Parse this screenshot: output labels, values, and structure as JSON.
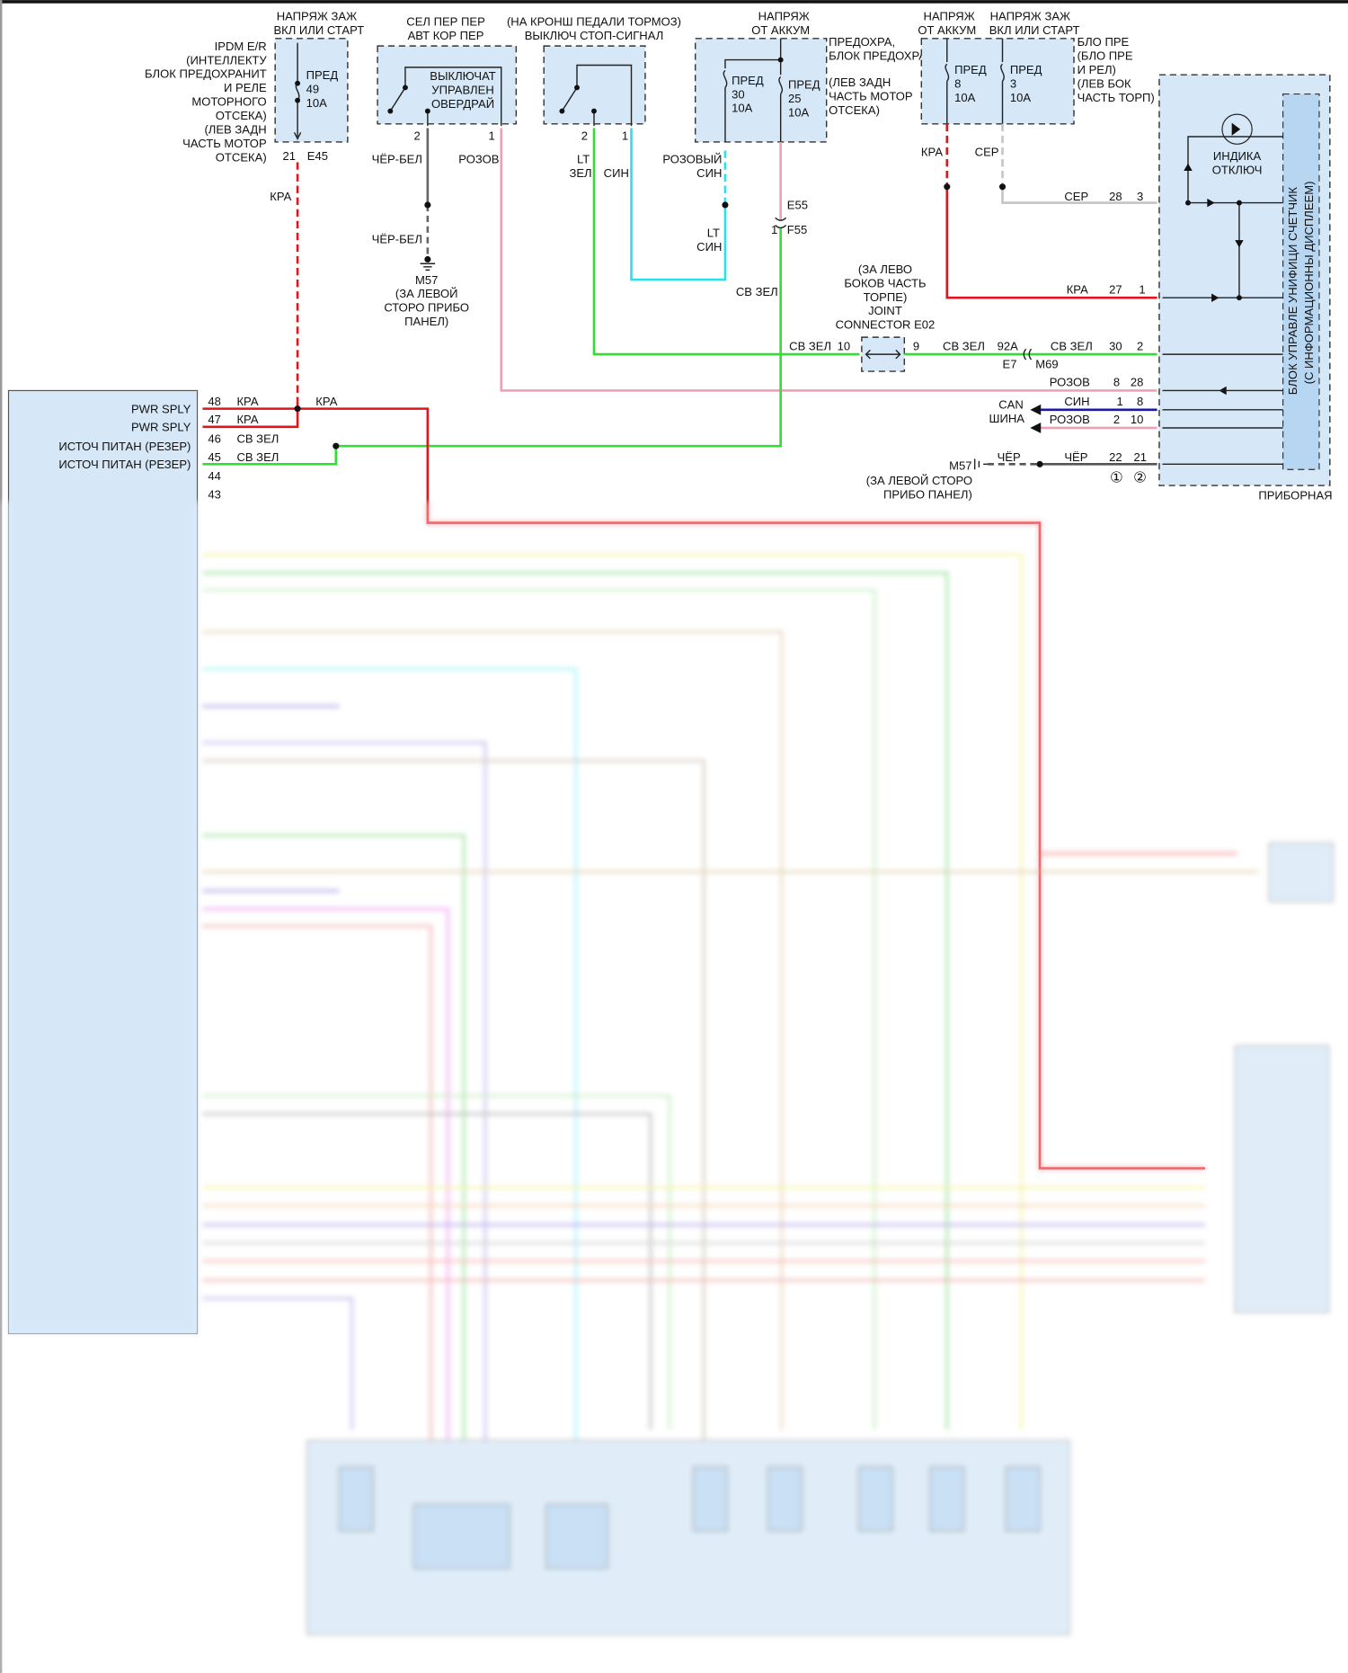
{
  "colors": {
    "red": "#e0141c",
    "pink": "#f0a0b4",
    "green": "#33dd33",
    "cyan": "#22e3ee",
    "blue": "#1a1aa8",
    "gray": "#b8b8b8",
    "dark": "#555555",
    "box": "#d6e8f8"
  },
  "ipdm": {
    "supply": [
      "НАПРЯЖ ЗАЖ",
      "ВКЛ ИЛИ СТАРТ"
    ],
    "desc": [
      "IPDM E/R",
      "(ИНТЕЛЛЕКТУ",
      "БЛОК ПРЕДОХРАНИТ",
      "И РЕЛЕ",
      "МОТОРНОГО",
      "ОТСЕКА)",
      "(ЛЕВ ЗАДН",
      "ЧАСТЬ МОТОР",
      "ОТСЕКА)"
    ],
    "fuse": [
      "ПРЕД",
      "49",
      "10А"
    ],
    "pin": "21",
    "connector": "E45",
    "wire": "КРА"
  },
  "overdrive": {
    "title": [
      "СЕЛ ПЕР ПЕР",
      "АВТ КОР ПЕР"
    ],
    "label": [
      "ВЫКЛЮЧАТ",
      "УПРАВЛЕН",
      "ОВЕРДРАЙ"
    ],
    "pin2": "2",
    "pin1": "1",
    "wire2": "ЧЁР-БЕЛ",
    "wire2b": "ЧЁР-БЕЛ",
    "wire1": "РОЗОВ",
    "ground": [
      "M57",
      "(ЗА ЛЕВОЙ",
      "СТОРО ПРИБО",
      "ПАНЕЛ)"
    ]
  },
  "stop": {
    "title": [
      "(НА КРОНШ ПЕДАЛИ ТОРМОЗ)",
      "ВЫКЛЮЧ СТОП-СИГНАЛ"
    ],
    "pin2": "2",
    "pin1": "1",
    "wire2": [
      "LT",
      "ЗЕЛ"
    ],
    "wire1": "СИН"
  },
  "fusebox1": {
    "supply": [
      "НАПРЯЖ",
      "ОТ АККУМ"
    ],
    "fuseA": [
      "ПРЕД",
      "30",
      "10А"
    ],
    "fuseB": [
      "ПРЕД",
      "25",
      "10А"
    ],
    "desc": [
      "ПРЕДОХРА,",
      "БЛОК ПРЕДОХРАН",
      "(ЛЕВ ЗАДН",
      "ЧАСТЬ МОТОР",
      "ОТСЕКА)"
    ],
    "wireA": [
      "РОЗОВЫЙ",
      "СИН"
    ],
    "wireA2": [
      "LT",
      "СИН"
    ],
    "conn1": "E55",
    "conn2pin": "1",
    "conn2": "F55",
    "wireB": "СВ ЗЕЛ"
  },
  "fusebox2": {
    "supplyA": [
      "НАПРЯЖ",
      "ОТ АККУМ"
    ],
    "supplyB": [
      "НАПРЯЖ ЗАЖ",
      "ВКЛ ИЛИ СТАРТ"
    ],
    "fuseA": [
      "ПРЕД",
      "8",
      "10А"
    ],
    "fuseB": [
      "ПРЕД",
      "3",
      "10А"
    ],
    "desc": [
      "БЛО ПРЕ",
      "(БЛО ПРЕ",
      "И РЕЛ)",
      "(ЛЕВ БОК",
      "ЧАСТЬ ТОРП)"
    ],
    "wireA": "КРА",
    "wireB": "СЕР"
  },
  "joint": {
    "desc": [
      "(ЗА ЛЕВО",
      "БОКОВ ЧАСТЬ",
      "ТОРПЕ)",
      "JOINT",
      "CONNECTOR E02"
    ],
    "wireL": "СВ ЗЕЛ",
    "pinL": "10",
    "pinR": "9",
    "wireR": "СВ ЗЕЛ",
    "pinE7": "92А",
    "connE7": "E7",
    "connM69": "M69"
  },
  "cluster": {
    "title": [
      "БЛОК УПРАВЛЕ УНИФИЦИ СЧЕТЧИК",
      "(С ИНФОРМАЦИОННЫ ДИСПЛЕЕМ)"
    ],
    "indicator": [
      "ИНДИКА",
      "ОТКЛЮЧ"
    ],
    "footer": "ПРИБОРНАЯ",
    "rows": [
      {
        "wire": "СЕР",
        "a": "28",
        "b": "3"
      },
      {
        "wire": "КРА",
        "a": "27",
        "b": "1"
      },
      {
        "wire": "СВ ЗЕЛ",
        "a": "30",
        "b": "2"
      },
      {
        "wire": "РОЗОВ",
        "a": "8",
        "b": "28"
      },
      {
        "wire": "СИН",
        "a": "1",
        "b": "8"
      },
      {
        "wire": "РОЗОВ",
        "a": "2",
        "b": "10"
      },
      {
        "wire": "ЧЁР",
        "a": "22",
        "b": "21"
      }
    ],
    "can": [
      "CAN",
      "ШИНА"
    ],
    "ground": "M57",
    "groundWire": "ЧЁР",
    "groundDesc": [
      "(ЗА ЛЕВОЙ СТОРО",
      "ПРИБО ПАНЕЛ)"
    ],
    "notes": [
      "①",
      "②"
    ]
  },
  "ecm": {
    "pins": [
      {
        "num": "48",
        "label": "PWR SPLY",
        "wire": "КРА"
      },
      {
        "num": "47",
        "label": "PWR SPLY",
        "wire": "КРА"
      },
      {
        "num": "46",
        "label": "ИСТОЧ ПИТАН (РЕЗЕР)",
        "wire": "СВ ЗЕЛ"
      },
      {
        "num": "45",
        "label": "ИСТОЧ ПИТАН (РЕЗЕР)",
        "wire": "СВ ЗЕЛ"
      },
      {
        "num": "44",
        "label": "",
        "wire": ""
      },
      {
        "num": "43",
        "label": "",
        "wire": ""
      }
    ],
    "junctionWire": "КРА"
  }
}
